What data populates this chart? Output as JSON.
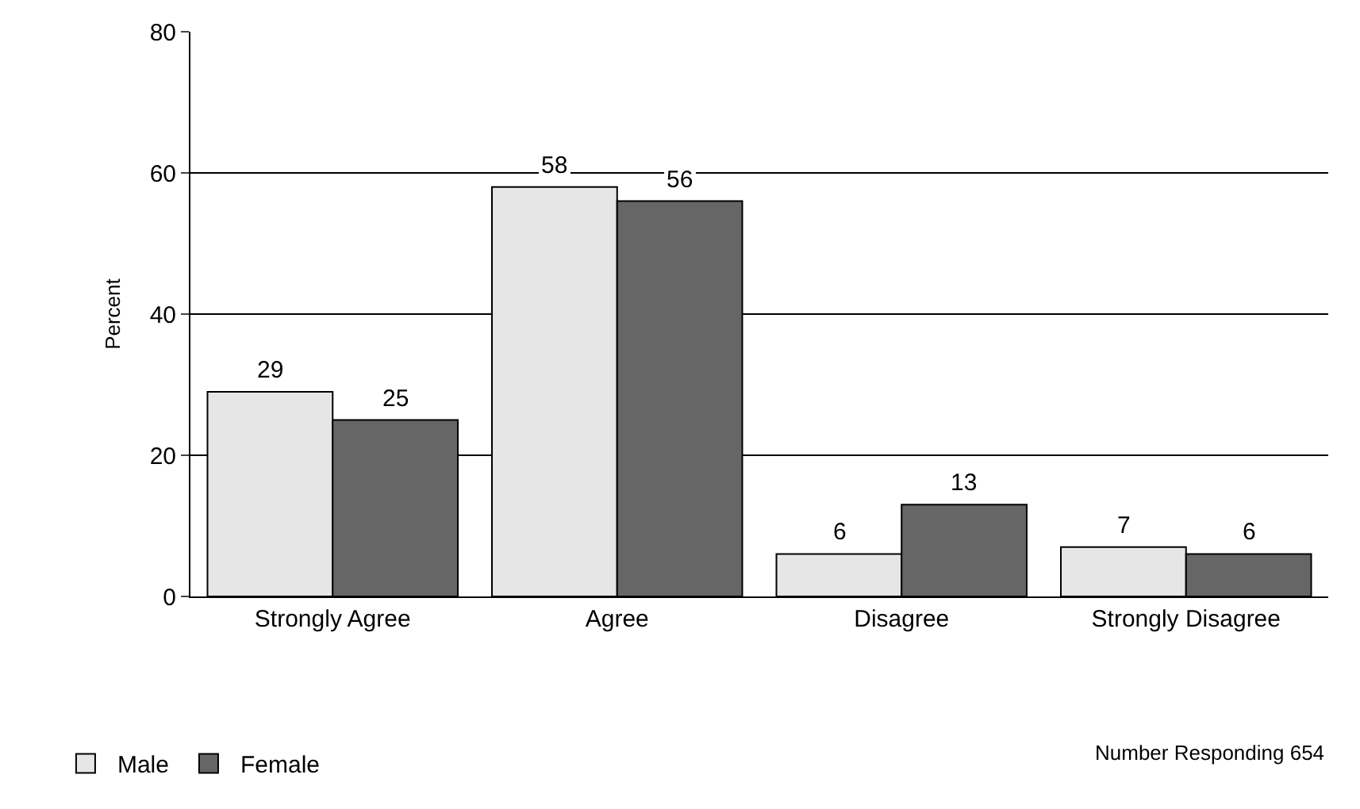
{
  "chart_data": {
    "type": "bar",
    "ylabel": "Percent",
    "categories": [
      "Strongly Agree",
      "Agree",
      "Disagree",
      "Strongly Disagree"
    ],
    "series": [
      {
        "name": "Male",
        "color": "#e6e6e6",
        "values": [
          29,
          58,
          6,
          7
        ]
      },
      {
        "name": "Female",
        "color": "#666666",
        "values": [
          25,
          56,
          13,
          6
        ]
      }
    ],
    "ylim": [
      0,
      80
    ],
    "yticks": [
      0,
      20,
      40,
      60,
      80
    ],
    "grid": "y",
    "data_labels": true,
    "legend": "bottom left",
    "annotations": [
      "Number Responding 654"
    ]
  }
}
